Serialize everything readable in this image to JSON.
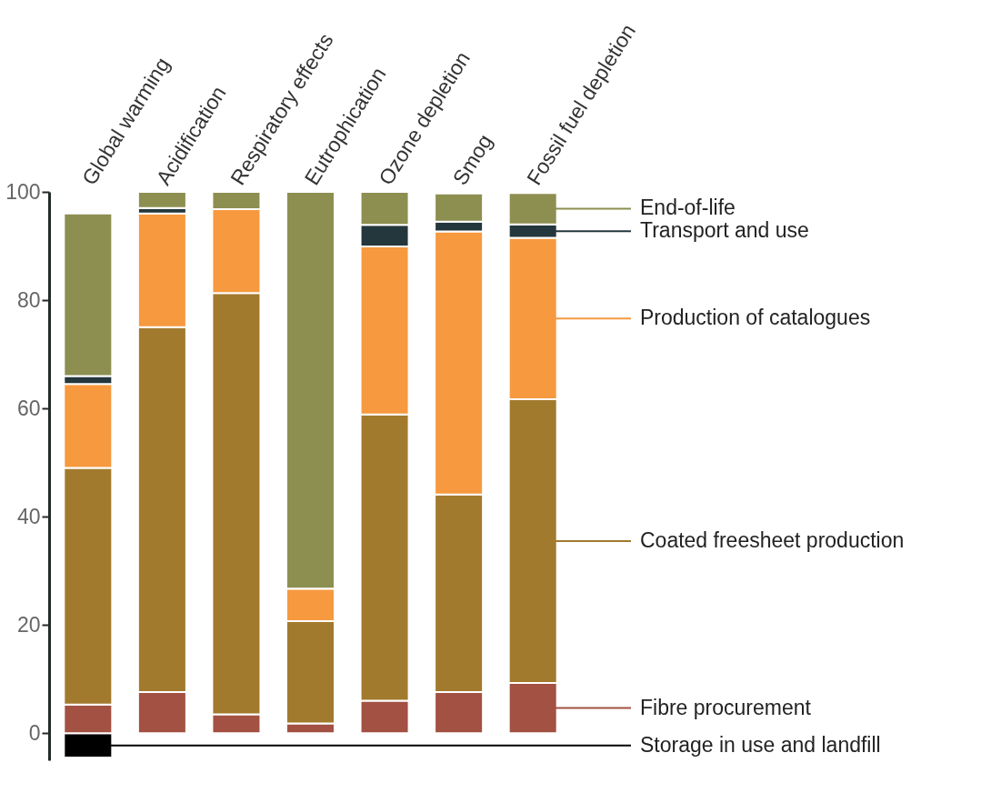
{
  "chart_data": {
    "type": "bar",
    "stacked": true,
    "categories": [
      "Global warming",
      "Acidification",
      "Respiratory effects",
      "Eutrophication",
      "Ozone depletion",
      "Smog",
      "Fossil fuel depletion"
    ],
    "series": [
      {
        "name": "Storage in use and landfill",
        "color": "#000000",
        "values": [
          -4.5,
          0,
          0,
          0,
          0,
          0,
          0
        ]
      },
      {
        "name": "Fibre procurement",
        "color": "#a35142",
        "values": [
          5.3,
          7.6,
          3.5,
          1.8,
          6,
          7.6,
          9.3
        ]
      },
      {
        "name": "Coated freesheet production",
        "color": "#a27a2d",
        "values": [
          43.7,
          67.4,
          77.8,
          18.9,
          52.9,
          36.5,
          52.4
        ]
      },
      {
        "name": "Production of catalogues",
        "color": "#f6993f",
        "values": [
          15.5,
          21,
          15.5,
          6,
          31,
          48.6,
          29.8
        ]
      },
      {
        "name": "Transport and use",
        "color": "#23373c",
        "values": [
          1.5,
          1,
          0,
          0,
          4,
          1.8,
          2.5
        ]
      },
      {
        "name": "End-of-life",
        "color": "#8c8f50",
        "values": [
          30,
          3,
          3.2,
          73.3,
          6.1,
          5.2,
          5.8
        ]
      }
    ],
    "ylim": [
      -5,
      100
    ],
    "yticks": [
      0,
      20,
      40,
      60,
      80,
      100
    ],
    "grid": false,
    "legend": "right"
  }
}
